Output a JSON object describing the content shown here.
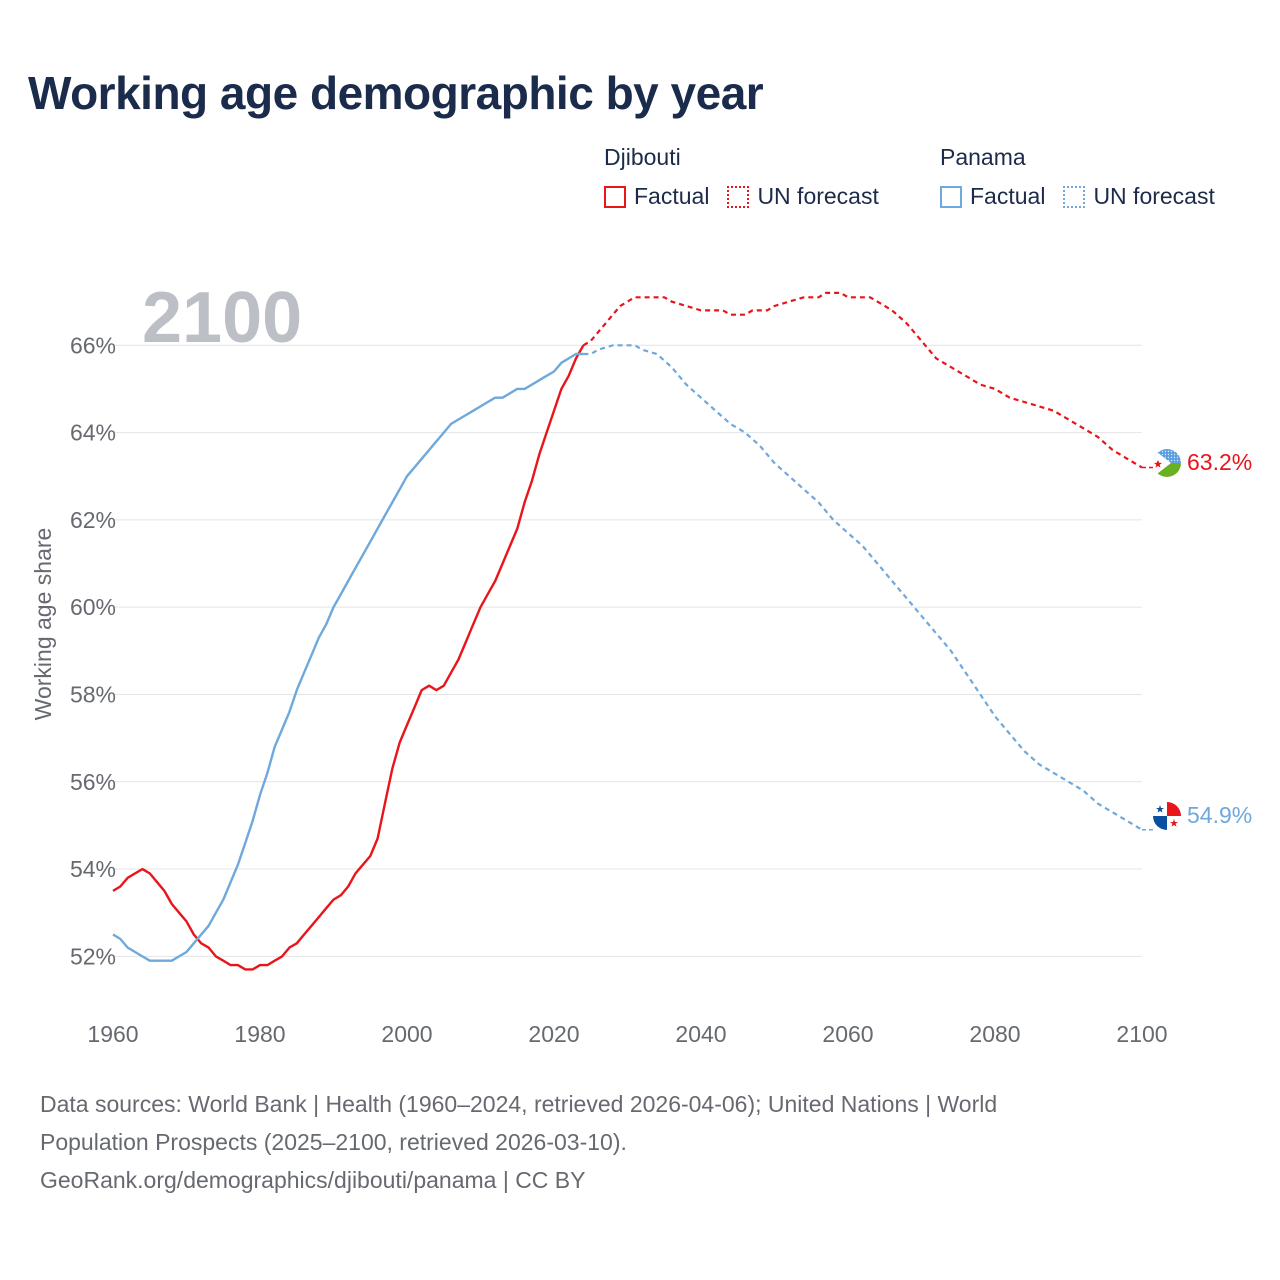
{
  "title": "Working age demographic by year",
  "legend": {
    "groups": [
      {
        "country": "Djibouti",
        "color": "#e8151b",
        "items": [
          {
            "label": "Factual",
            "style": "solid"
          },
          {
            "label": "UN forecast",
            "style": "dotted"
          }
        ]
      },
      {
        "country": "Panama",
        "color": "#6fa8dc",
        "items": [
          {
            "label": "Factual",
            "style": "solid"
          },
          {
            "label": "UN forecast",
            "style": "dotted"
          }
        ]
      }
    ]
  },
  "source": {
    "line1": "Data sources: World Bank | Health (1960–2024, retrieved 2026-04-06); United Nations | World",
    "line2": "Population Prospects (2025–2100, retrieved 2026-03-10).",
    "line3": "GeoRank.org/demographics/djibouti/panama | CC BY"
  },
  "chart_data": {
    "type": "line",
    "title": "Working age demographic by year",
    "ylabel": "Working age share",
    "xlabel": "",
    "year_watermark": "2100",
    "xlim": [
      1960,
      2100
    ],
    "ylim": [
      51,
      68
    ],
    "x_ticks": [
      1960,
      1980,
      2000,
      2020,
      2040,
      2060,
      2080,
      2100
    ],
    "y_ticks": [
      52,
      54,
      56,
      58,
      60,
      62,
      64,
      66
    ],
    "y_tick_labels": [
      "52%",
      "54%",
      "56%",
      "58%",
      "60%",
      "62%",
      "64%",
      "66%"
    ],
    "factual_end_year": 2024,
    "series": [
      {
        "name": "Djibouti",
        "color": "#e8151b",
        "end_label": "63.2%",
        "points": [
          [
            1960,
            53.5
          ],
          [
            1961,
            53.6
          ],
          [
            1962,
            53.8
          ],
          [
            1963,
            53.9
          ],
          [
            1964,
            54.0
          ],
          [
            1965,
            53.9
          ],
          [
            1966,
            53.7
          ],
          [
            1967,
            53.5
          ],
          [
            1968,
            53.2
          ],
          [
            1969,
            53.0
          ],
          [
            1970,
            52.8
          ],
          [
            1971,
            52.5
          ],
          [
            1972,
            52.3
          ],
          [
            1973,
            52.2
          ],
          [
            1974,
            52.0
          ],
          [
            1975,
            51.9
          ],
          [
            1976,
            51.8
          ],
          [
            1977,
            51.8
          ],
          [
            1978,
            51.7
          ],
          [
            1979,
            51.7
          ],
          [
            1980,
            51.8
          ],
          [
            1981,
            51.8
          ],
          [
            1982,
            51.9
          ],
          [
            1983,
            52.0
          ],
          [
            1984,
            52.2
          ],
          [
            1985,
            52.3
          ],
          [
            1986,
            52.5
          ],
          [
            1987,
            52.7
          ],
          [
            1988,
            52.9
          ],
          [
            1989,
            53.1
          ],
          [
            1990,
            53.3
          ],
          [
            1991,
            53.4
          ],
          [
            1992,
            53.6
          ],
          [
            1993,
            53.9
          ],
          [
            1994,
            54.1
          ],
          [
            1995,
            54.3
          ],
          [
            1996,
            54.7
          ],
          [
            1997,
            55.5
          ],
          [
            1998,
            56.3
          ],
          [
            1999,
            56.9
          ],
          [
            2000,
            57.3
          ],
          [
            2001,
            57.7
          ],
          [
            2002,
            58.1
          ],
          [
            2003,
            58.2
          ],
          [
            2004,
            58.1
          ],
          [
            2005,
            58.2
          ],
          [
            2006,
            58.5
          ],
          [
            2007,
            58.8
          ],
          [
            2008,
            59.2
          ],
          [
            2009,
            59.6
          ],
          [
            2010,
            60.0
          ],
          [
            2011,
            60.3
          ],
          [
            2012,
            60.6
          ],
          [
            2013,
            61.0
          ],
          [
            2014,
            61.4
          ],
          [
            2015,
            61.8
          ],
          [
            2016,
            62.4
          ],
          [
            2017,
            62.9
          ],
          [
            2018,
            63.5
          ],
          [
            2019,
            64.0
          ],
          [
            2020,
            64.5
          ],
          [
            2021,
            65.0
          ],
          [
            2022,
            65.3
          ],
          [
            2023,
            65.7
          ],
          [
            2024,
            66.0
          ],
          [
            2025,
            66.1
          ],
          [
            2026,
            66.3
          ],
          [
            2027,
            66.5
          ],
          [
            2028,
            66.7
          ],
          [
            2029,
            66.9
          ],
          [
            2030,
            67.0
          ],
          [
            2031,
            67.1
          ],
          [
            2035,
            67.1
          ],
          [
            2036,
            67.0
          ],
          [
            2038,
            66.9
          ],
          [
            2040,
            66.8
          ],
          [
            2043,
            66.8
          ],
          [
            2044,
            66.7
          ],
          [
            2046,
            66.7
          ],
          [
            2047,
            66.8
          ],
          [
            2049,
            66.8
          ],
          [
            2050,
            66.9
          ],
          [
            2052,
            67.0
          ],
          [
            2054,
            67.1
          ],
          [
            2056,
            67.1
          ],
          [
            2057,
            67.2
          ],
          [
            2059,
            67.2
          ],
          [
            2060,
            67.1
          ],
          [
            2063,
            67.1
          ],
          [
            2064,
            67.0
          ],
          [
            2066,
            66.8
          ],
          [
            2068,
            66.5
          ],
          [
            2070,
            66.1
          ],
          [
            2072,
            65.7
          ],
          [
            2074,
            65.5
          ],
          [
            2076,
            65.3
          ],
          [
            2078,
            65.1
          ],
          [
            2080,
            65.0
          ],
          [
            2082,
            64.8
          ],
          [
            2084,
            64.7
          ],
          [
            2086,
            64.6
          ],
          [
            2088,
            64.5
          ],
          [
            2090,
            64.3
          ],
          [
            2092,
            64.1
          ],
          [
            2094,
            63.9
          ],
          [
            2096,
            63.6
          ],
          [
            2098,
            63.4
          ],
          [
            2100,
            63.2
          ]
        ]
      },
      {
        "name": "Panama",
        "color": "#6fa8dc",
        "end_label": "54.9%",
        "points": [
          [
            1960,
            52.5
          ],
          [
            1961,
            52.4
          ],
          [
            1962,
            52.2
          ],
          [
            1963,
            52.1
          ],
          [
            1964,
            52.0
          ],
          [
            1965,
            51.9
          ],
          [
            1966,
            51.9
          ],
          [
            1967,
            51.9
          ],
          [
            1968,
            51.9
          ],
          [
            1969,
            52.0
          ],
          [
            1970,
            52.1
          ],
          [
            1971,
            52.3
          ],
          [
            1972,
            52.5
          ],
          [
            1973,
            52.7
          ],
          [
            1974,
            53.0
          ],
          [
            1975,
            53.3
          ],
          [
            1976,
            53.7
          ],
          [
            1977,
            54.1
          ],
          [
            1978,
            54.6
          ],
          [
            1979,
            55.1
          ],
          [
            1980,
            55.7
          ],
          [
            1981,
            56.2
          ],
          [
            1982,
            56.8
          ],
          [
            1983,
            57.2
          ],
          [
            1984,
            57.6
          ],
          [
            1985,
            58.1
          ],
          [
            1986,
            58.5
          ],
          [
            1987,
            58.9
          ],
          [
            1988,
            59.3
          ],
          [
            1989,
            59.6
          ],
          [
            1990,
            60.0
          ],
          [
            1991,
            60.3
          ],
          [
            1992,
            60.6
          ],
          [
            1993,
            60.9
          ],
          [
            1994,
            61.2
          ],
          [
            1995,
            61.5
          ],
          [
            1996,
            61.8
          ],
          [
            1997,
            62.1
          ],
          [
            1998,
            62.4
          ],
          [
            1999,
            62.7
          ],
          [
            2000,
            63.0
          ],
          [
            2001,
            63.2
          ],
          [
            2002,
            63.4
          ],
          [
            2003,
            63.6
          ],
          [
            2004,
            63.8
          ],
          [
            2005,
            64.0
          ],
          [
            2006,
            64.2
          ],
          [
            2007,
            64.3
          ],
          [
            2008,
            64.4
          ],
          [
            2009,
            64.5
          ],
          [
            2010,
            64.6
          ],
          [
            2011,
            64.7
          ],
          [
            2012,
            64.8
          ],
          [
            2013,
            64.8
          ],
          [
            2014,
            64.9
          ],
          [
            2015,
            65.0
          ],
          [
            2016,
            65.0
          ],
          [
            2017,
            65.1
          ],
          [
            2018,
            65.2
          ],
          [
            2019,
            65.3
          ],
          [
            2020,
            65.4
          ],
          [
            2021,
            65.6
          ],
          [
            2022,
            65.7
          ],
          [
            2023,
            65.8
          ],
          [
            2024,
            65.8
          ],
          [
            2025,
            65.8
          ],
          [
            2026,
            65.9
          ],
          [
            2028,
            66.0
          ],
          [
            2031,
            66.0
          ],
          [
            2032,
            65.9
          ],
          [
            2034,
            65.8
          ],
          [
            2036,
            65.5
          ],
          [
            2038,
            65.1
          ],
          [
            2040,
            64.8
          ],
          [
            2042,
            64.5
          ],
          [
            2044,
            64.2
          ],
          [
            2046,
            64.0
          ],
          [
            2048,
            63.7
          ],
          [
            2050,
            63.3
          ],
          [
            2052,
            63.0
          ],
          [
            2054,
            62.7
          ],
          [
            2056,
            62.4
          ],
          [
            2058,
            62.0
          ],
          [
            2060,
            61.7
          ],
          [
            2062,
            61.4
          ],
          [
            2064,
            61.0
          ],
          [
            2066,
            60.6
          ],
          [
            2068,
            60.2
          ],
          [
            2070,
            59.8
          ],
          [
            2072,
            59.4
          ],
          [
            2074,
            59.0
          ],
          [
            2076,
            58.5
          ],
          [
            2078,
            58.0
          ],
          [
            2080,
            57.5
          ],
          [
            2082,
            57.1
          ],
          [
            2084,
            56.7
          ],
          [
            2086,
            56.4
          ],
          [
            2088,
            56.2
          ],
          [
            2090,
            56.0
          ],
          [
            2092,
            55.8
          ],
          [
            2094,
            55.5
          ],
          [
            2096,
            55.3
          ],
          [
            2098,
            55.1
          ],
          [
            2100,
            54.9
          ]
        ]
      }
    ]
  }
}
